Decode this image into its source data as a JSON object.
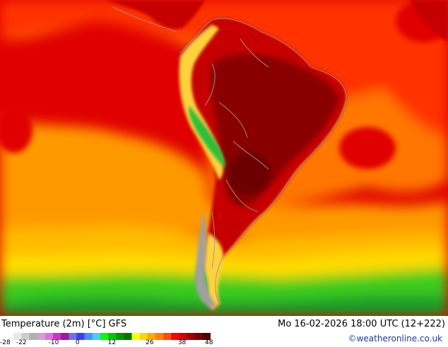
{
  "map": {
    "title": "Temperature (2m) [°C] GFS",
    "datetime": "Mo 16-02-2026 18:00 UTC (12+222)",
    "credit": "©weatheronline.co.uk",
    "colors": {
      "ocean_hot": "#e00000",
      "ocean_warm": "#ff3300",
      "ocean_orange": "#ff7700",
      "ocean_amber": "#ff9900",
      "ocean_gold": "#ffbb00",
      "ocean_yellow": "#ffdd00",
      "cool_green": "#3ccc1e",
      "cold_green": "#129e2a",
      "land_red": "#c60000",
      "land_dark": "#8a0000",
      "land_darkest": "#6c0000",
      "mountain_yellow": "#ffd23c",
      "mountain_green": "#2fbe3a",
      "ice_gray": "#a0a0a0",
      "border": "#999999"
    },
    "legend": {
      "ticks": [
        "-28",
        "-22",
        "-10",
        "0",
        "12",
        "26",
        "38",
        "48"
      ],
      "colors": [
        "#ffffff",
        "#e8e8e8",
        "#cccccc",
        "#b0b0b0",
        "#d2a0d2",
        "#e070e0",
        "#cc33cc",
        "#a018a0",
        "#7070e0",
        "#3c3cff",
        "#3c96ff",
        "#50c8ff",
        "#00ff00",
        "#00c800",
        "#009600",
        "#007800",
        "#ffff00",
        "#ffd700",
        "#ffaa00",
        "#ff8000",
        "#ff4d00",
        "#ff0000",
        "#d20000",
        "#a00000",
        "#780000",
        "#500000"
      ]
    }
  }
}
